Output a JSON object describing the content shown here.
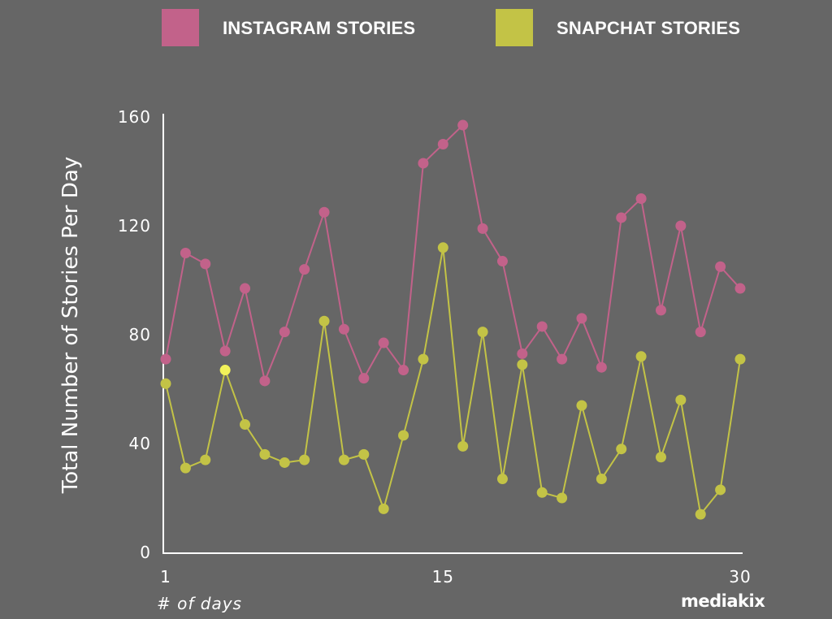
{
  "legend": {
    "items": [
      {
        "label": "INSTAGRAM STORIES",
        "color": "#c2628a"
      },
      {
        "label": "SNAPCHAT STORIES",
        "color": "#c3c346"
      }
    ]
  },
  "brand": {
    "logo_text": "mediakix"
  },
  "chart_data": {
    "type": "line",
    "title": "",
    "xlabel": "# of days",
    "ylabel": "Total Number of Stories Per Day",
    "x": [
      1,
      2,
      3,
      4,
      5,
      6,
      7,
      8,
      9,
      10,
      11,
      12,
      13,
      14,
      15,
      16,
      17,
      18,
      19,
      20,
      21,
      22,
      23,
      24,
      25,
      26,
      27,
      28,
      29,
      30
    ],
    "xlim": [
      1,
      30
    ],
    "ylim": [
      0,
      160
    ],
    "x_ticks": [
      1,
      15,
      30
    ],
    "y_ticks": [
      0,
      40,
      80,
      120,
      160
    ],
    "grid": false,
    "legend_position": "top",
    "highlight": {
      "series": 1,
      "x": 4,
      "color": "#f2f25a"
    },
    "series": [
      {
        "name": "INSTAGRAM STORIES",
        "color": "#c2628a",
        "values": [
          71,
          110,
          106,
          74,
          97,
          63,
          81,
          104,
          125,
          82,
          64,
          77,
          67,
          143,
          150,
          157,
          119,
          107,
          73,
          83,
          71,
          86,
          68,
          123,
          130,
          89,
          120,
          81,
          105,
          97
        ]
      },
      {
        "name": "SNAPCHAT STORIES",
        "color": "#c3c346",
        "values": [
          62,
          31,
          34,
          67,
          47,
          36,
          33,
          34,
          85,
          34,
          36,
          16,
          43,
          71,
          112,
          39,
          81,
          27,
          69,
          22,
          20,
          54,
          27,
          38,
          72,
          35,
          56,
          14,
          23,
          71
        ]
      }
    ]
  }
}
